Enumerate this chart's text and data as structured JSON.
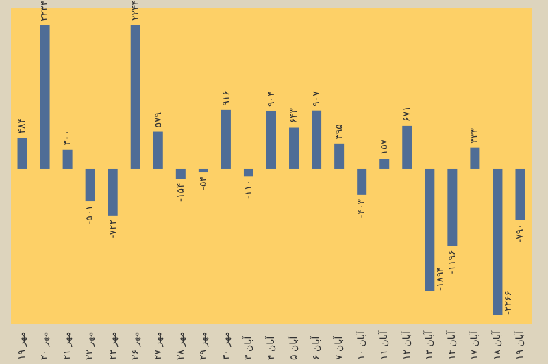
{
  "chart_data": {
    "type": "bar",
    "categories": [
      "۱۹ مهر",
      "۲۰ مهر",
      "۲۱ مهر",
      "۲۲ مهر",
      "۲۳ مهر",
      "۲۶ مهر",
      "۲۷ مهر",
      "۲۸ مهر",
      "۲۹ مهر",
      "۳۰ مهر",
      "۳ آبان",
      "۴ آبان",
      "۵ آبان",
      "۶ آبان",
      "۷ آبان",
      "۱۰ آبان",
      "۱۱ آبان",
      "۱۲ آبان",
      "۱۳ آبان",
      "۱۴ آبان",
      "۱۷ آبان",
      "۱۸ آبان",
      "۱۹ آبان"
    ],
    "values": [
      484,
      2234,
      300,
      -501,
      -722,
      2244,
      579,
      -154,
      -54,
      916,
      -110,
      904,
      643,
      907,
      395,
      -403,
      157,
      671,
      -1894,
      -1196,
      333,
      -2266,
      -790
    ],
    "value_labels": [
      "۴۸۴",
      "۲۲۳۴",
      "۳۰۰",
      "-۵۰۱",
      "-۷۲۲",
      "۲۲۴۴",
      "۵۷۹",
      "-۱۵۴",
      "-۵۴",
      "۹۱۶",
      "-۱۱۰",
      "۹۰۴",
      "۶۴۳",
      "۹۰۷",
      "۳۹۵",
      "-۴۰۳",
      "۱۵۷",
      "۶۷۱",
      "-۱۸۹۴",
      "-۱۱۹۶",
      "۳۳۳",
      "-۲۲۶۶",
      "-۷۹۰"
    ],
    "color": "#4f6d96"
  }
}
